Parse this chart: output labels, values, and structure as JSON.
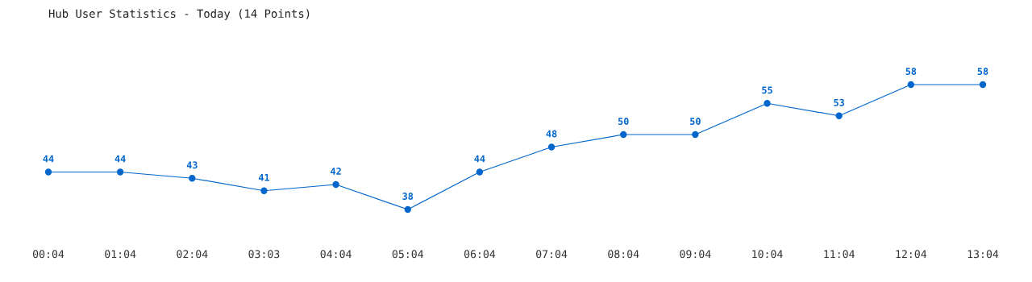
{
  "chart_data": {
    "type": "line",
    "title": "Hub User Statistics - Today (14 Points)",
    "categories": [
      "00:04",
      "01:04",
      "02:04",
      "03:03",
      "04:04",
      "05:04",
      "06:04",
      "07:04",
      "08:04",
      "09:04",
      "10:04",
      "11:04",
      "12:04",
      "13:04"
    ],
    "series": [
      {
        "color": "#0066cc",
        "values": [
          44,
          44,
          43,
          41,
          42,
          38,
          44,
          48,
          50,
          50,
          55,
          53,
          58,
          58
        ]
      }
    ],
    "data_labels": true,
    "marker": "circle",
    "line_style": "solid",
    "grid": false,
    "legend": false,
    "relative": false
  }
}
